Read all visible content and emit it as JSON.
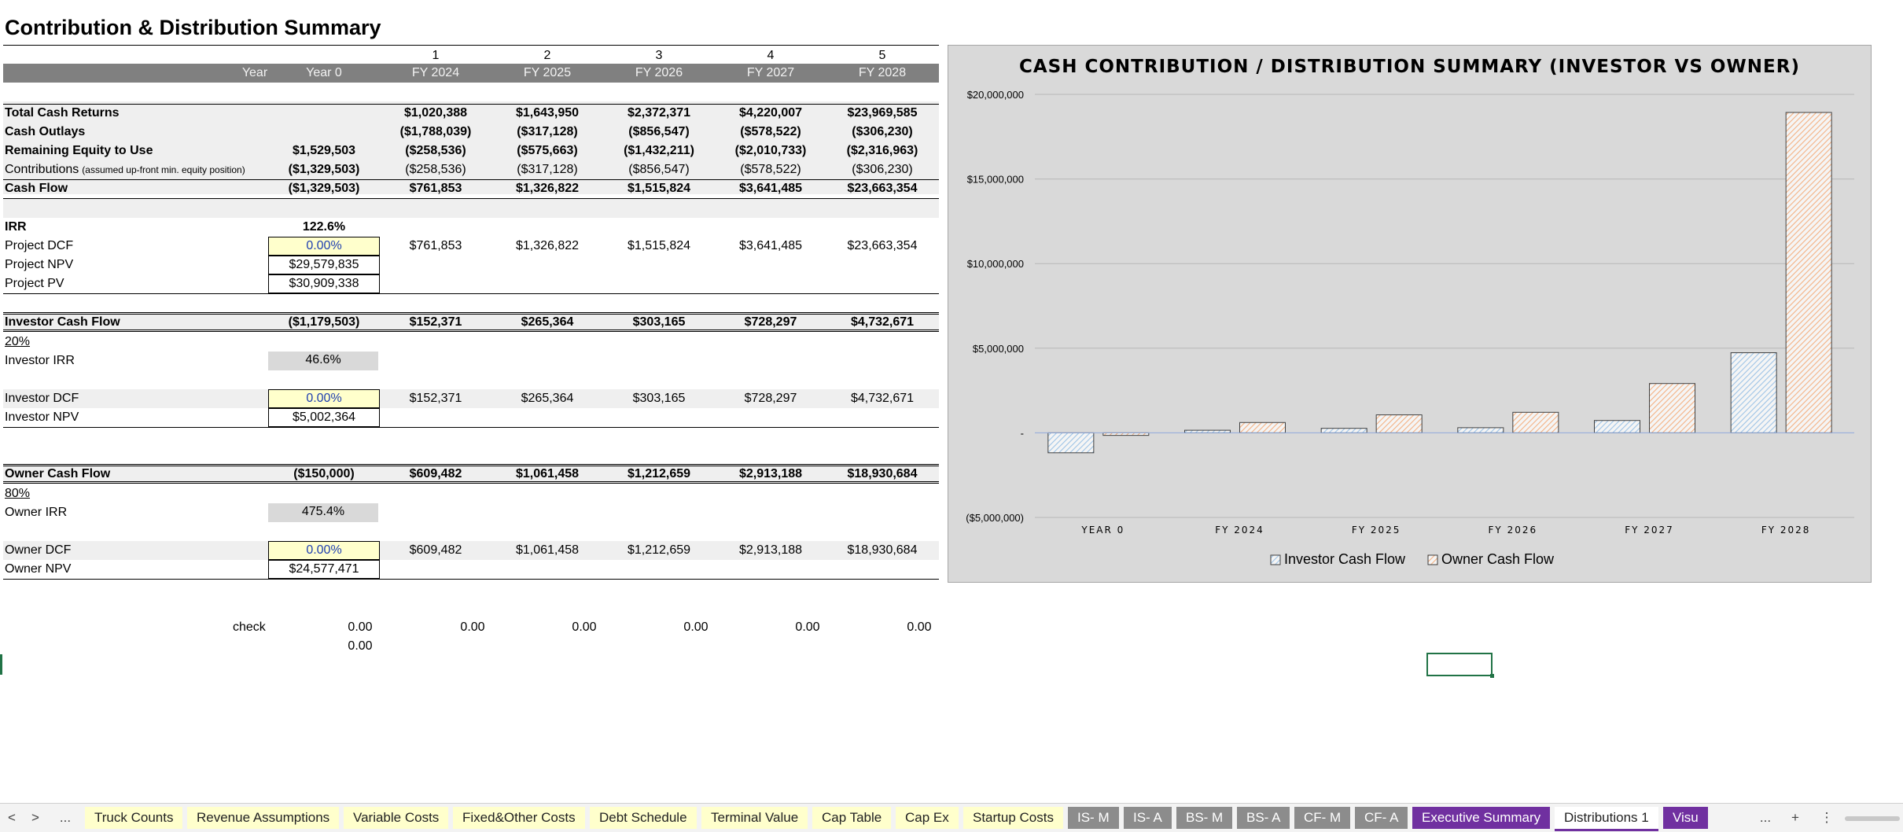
{
  "sheet": {
    "title": "Contribution & Distribution Summary",
    "period_numbers": [
      "1",
      "2",
      "3",
      "4",
      "5"
    ],
    "header": {
      "year_label": "Year",
      "columns": [
        "Year 0",
        "FY 2024",
        "FY 2025",
        "FY 2026",
        "FY 2027",
        "FY 2028"
      ]
    },
    "summary_rows": [
      {
        "label": "Total Cash Returns",
        "note": "",
        "values": [
          "",
          "$1,020,388",
          "$1,643,950",
          "$2,372,371",
          "$4,220,007",
          "$23,969,585"
        ],
        "bold": true
      },
      {
        "label": "Cash Outlays",
        "note": "",
        "values": [
          "",
          "($1,788,039)",
          "($317,128)",
          "($856,547)",
          "($578,522)",
          "($306,230)"
        ],
        "bold": true
      },
      {
        "label": "Remaining Equity to Use",
        "note": "",
        "values": [
          "$1,529,503",
          "($258,536)",
          "($575,663)",
          "($1,432,211)",
          "($2,010,733)",
          "($2,316,963)"
        ],
        "bold": true
      },
      {
        "label": "Contributions",
        "note": "(assumed up-front min. equity position)",
        "values": [
          "($1,329,503)",
          "($258,536)",
          "($317,128)",
          "($856,547)",
          "($578,522)",
          "($306,230)"
        ],
        "bold": false
      },
      {
        "label": "Cash Flow",
        "note": "",
        "values": [
          "($1,329,503)",
          "$761,853",
          "$1,326,822",
          "$1,515,824",
          "$3,641,485",
          "$23,663,354"
        ],
        "bold": true
      }
    ],
    "project": {
      "irr_label": "IRR",
      "irr_value": "122.6%",
      "dcf_label": "Project DCF",
      "dcf_rate": "0.00%",
      "dcf_values": [
        "$761,853",
        "$1,326,822",
        "$1,515,824",
        "$3,641,485",
        "$23,663,354"
      ],
      "npv_label": "Project NPV",
      "npv_value": "$29,579,835",
      "pv_label": "Project PV",
      "pv_value": "$30,909,338"
    },
    "investor": {
      "label": "Investor Cash Flow",
      "values": [
        "($1,179,503)",
        "$152,371",
        "$265,364",
        "$303,165",
        "$728,297",
        "$4,732,671"
      ],
      "share": "20%",
      "irr_label": "Investor IRR",
      "irr_value": "46.6%",
      "dcf_label": "Investor DCF",
      "dcf_rate": "0.00%",
      "dcf_values": [
        "$152,371",
        "$265,364",
        "$303,165",
        "$728,297",
        "$4,732,671"
      ],
      "npv_label": "Investor NPV",
      "npv_value": "$5,002,364"
    },
    "owner": {
      "label": "Owner Cash Flow",
      "values": [
        "($150,000)",
        "$609,482",
        "$1,061,458",
        "$1,212,659",
        "$2,913,188",
        "$18,930,684"
      ],
      "share": "80%",
      "irr_label": "Owner IRR",
      "irr_value": "475.4%",
      "dcf_label": "Owner DCF",
      "dcf_rate": "0.00%",
      "dcf_values": [
        "$609,482",
        "$1,061,458",
        "$1,212,659",
        "$2,913,188",
        "$18,930,684"
      ],
      "npv_label": "Owner NPV",
      "npv_value": "$24,577,471"
    },
    "check": {
      "label": "check",
      "values": [
        "0.00",
        "0.00",
        "0.00",
        "0.00",
        "0.00",
        "0.00"
      ],
      "extra": "0.00"
    }
  },
  "chart_data": {
    "type": "bar",
    "title": "CASH CONTRIBUTION / DISTRIBUTION SUMMARY (INVESTOR VS OWNER)",
    "categories": [
      "YEAR 0",
      "FY 2024",
      "FY 2025",
      "FY 2026",
      "FY 2027",
      "FY 2028"
    ],
    "series": [
      {
        "name": "Investor Cash Flow",
        "values": [
          -1179503,
          152371,
          265364,
          303165,
          728297,
          4732671
        ],
        "color": "#9dc3e6"
      },
      {
        "name": "Owner Cash Flow",
        "values": [
          -150000,
          609482,
          1061458,
          1212659,
          2913188,
          18930684
        ],
        "color": "#f4b183"
      }
    ],
    "ylim": [
      -5000000,
      20000000
    ],
    "yticks": [
      20000000,
      15000000,
      10000000,
      5000000,
      0,
      -5000000
    ],
    "ytick_labels": [
      "$20,000,000",
      "$15,000,000",
      "$10,000,000",
      "$5,000,000",
      "-",
      "($5,000,000)"
    ],
    "grid": true,
    "legend": "bottom"
  },
  "tabs": {
    "nav": [
      "<",
      ">",
      "..."
    ],
    "items": [
      {
        "label": "Truck Counts",
        "style": "y"
      },
      {
        "label": "Revenue Assumptions",
        "style": "y"
      },
      {
        "label": "Variable Costs",
        "style": "y"
      },
      {
        "label": "Fixed&Other Costs",
        "style": "y"
      },
      {
        "label": "Debt Schedule",
        "style": "y"
      },
      {
        "label": "Terminal Value",
        "style": "y"
      },
      {
        "label": "Cap Table",
        "style": "y"
      },
      {
        "label": "Cap Ex",
        "style": "y"
      },
      {
        "label": "Startup Costs",
        "style": "y"
      },
      {
        "label": "IS- M",
        "style": "g"
      },
      {
        "label": "IS- A",
        "style": "g"
      },
      {
        "label": "BS- M",
        "style": "g"
      },
      {
        "label": "BS- A",
        "style": "g"
      },
      {
        "label": "CF- M",
        "style": "g"
      },
      {
        "label": "CF- A",
        "style": "g"
      },
      {
        "label": "Executive Summary",
        "style": "p"
      },
      {
        "label": "Distributions 1",
        "style": "act"
      },
      {
        "label": "Visu",
        "style": "p"
      }
    ],
    "right_controls": [
      "...",
      "+",
      "⋮"
    ]
  }
}
